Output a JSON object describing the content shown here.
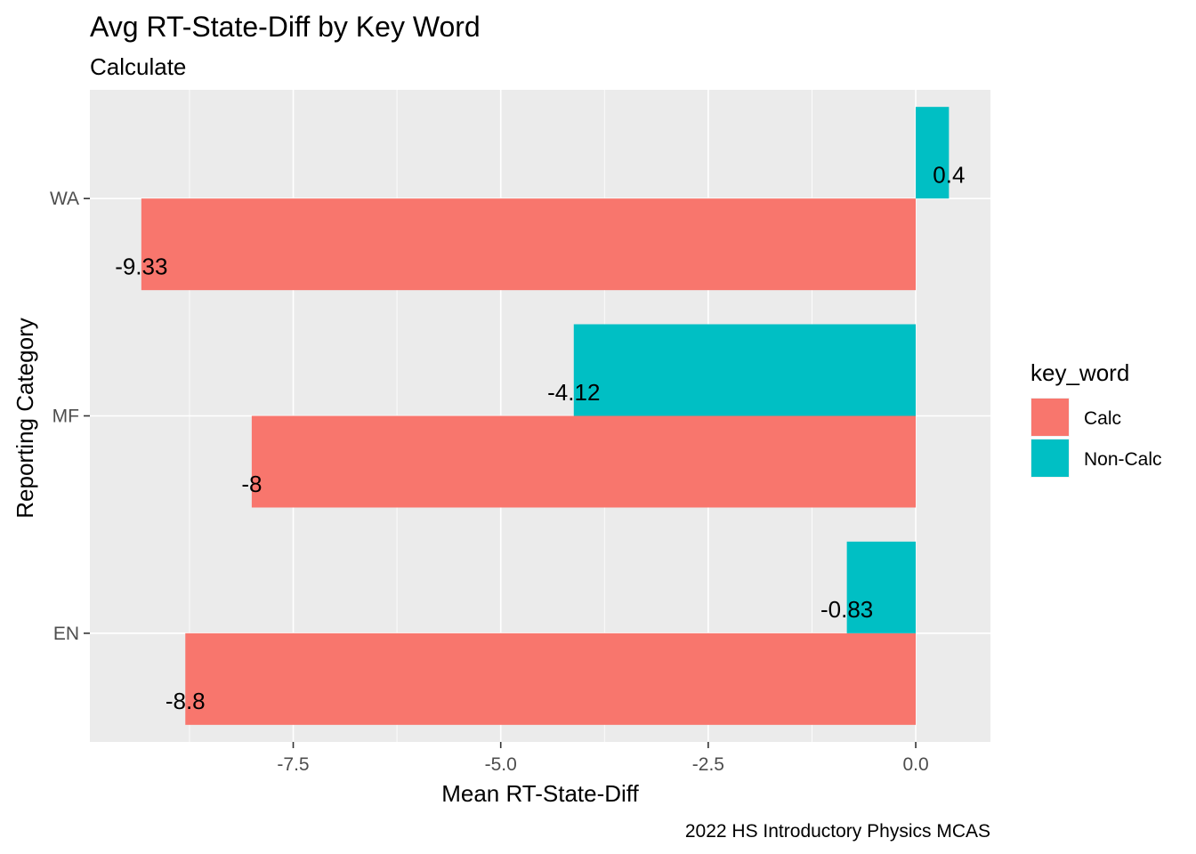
{
  "chart_data": {
    "type": "bar",
    "orientation": "horizontal",
    "title": "Avg RT-State-Diff by Key Word",
    "subtitle": "Calculate",
    "xlabel": "Mean RT-State-Diff",
    "ylabel": "Reporting Category",
    "caption": "2022 HS Introductory Physics MCAS",
    "categories": [
      "EN",
      "MF",
      "WA"
    ],
    "x_ticks": [
      "-7.5",
      "-5.0",
      "-2.5",
      "0.0"
    ],
    "xlim": [
      -9.95,
      0.9
    ],
    "grid": true,
    "legend": {
      "title": "key_word",
      "position": "right"
    },
    "series": [
      {
        "name": "Calc",
        "color": "#F8766D",
        "values": [
          -8.8,
          -8,
          -9.33
        ],
        "labels": [
          "-8.8",
          "-8",
          "-9.33"
        ]
      },
      {
        "name": "Non-Calc",
        "color": "#00BFC4",
        "values": [
          -0.83,
          -4.12,
          0.4
        ],
        "labels": [
          "-0.83",
          "-4.12",
          "0.4"
        ]
      }
    ]
  }
}
